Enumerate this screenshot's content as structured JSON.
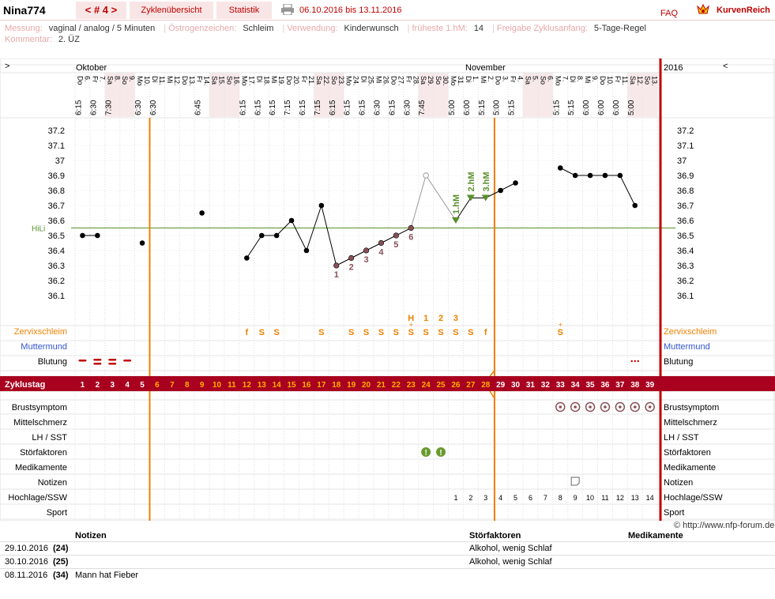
{
  "topbar": {
    "name": "Nina774",
    "cycle": "< # 4 >",
    "overview": "Zyklenübersicht",
    "stats": "Statistik",
    "daterange": "06.10.2016 bis 13.11.2016",
    "faq": "FAQ",
    "logo": "KurvenReich"
  },
  "meta": {
    "line1": [
      {
        "label": "Messung:",
        "value": "vaginal / analog / 5 Minuten"
      },
      {
        "label": "Östrogenzeichen:",
        "value": "Schleim"
      },
      {
        "label": "Verwendung:",
        "value": "Kinderwunsch"
      },
      {
        "label": "früheste 1.hM:",
        "value": "14"
      },
      {
        "label": "Freigabe Zyklusanfang:",
        "value": "5-Tage-Regel"
      }
    ],
    "comment_label": "Kommentar:",
    "comment": "2. ÜZ"
  },
  "chart": {
    "nav_left": ">",
    "nav_right": "<",
    "year": "2016",
    "month1": "Oktober",
    "month2": "November",
    "days": [
      {
        "d": "6.",
        "w": "Do",
        "t": "6:15"
      },
      {
        "d": "7.",
        "w": "Fr",
        "t": "6:30"
      },
      {
        "d": "8.",
        "w": "Sa",
        "t": "7:30"
      },
      {
        "d": "9.",
        "w": "So",
        "t": ""
      },
      {
        "d": "10.",
        "w": "Mo",
        "t": "6:30"
      },
      {
        "d": "11.",
        "w": "Di",
        "t": "6:30"
      },
      {
        "d": "12.",
        "w": "Mi",
        "t": ""
      },
      {
        "d": "13.",
        "w": "Do",
        "t": ""
      },
      {
        "d": "14.",
        "w": "Fr",
        "t": "6:45"
      },
      {
        "d": "15.",
        "w": "Sa",
        "t": ""
      },
      {
        "d": "16.",
        "w": "So",
        "t": ""
      },
      {
        "d": "17.",
        "w": "Mo",
        "t": "6:15"
      },
      {
        "d": "18.",
        "w": "Di",
        "t": "6:15"
      },
      {
        "d": "19.",
        "w": "Mi",
        "t": "6:15"
      },
      {
        "d": "20.",
        "w": "Do",
        "t": "7:15"
      },
      {
        "d": "21.",
        "w": "Fr",
        "t": "6:15"
      },
      {
        "d": "22.",
        "w": "Sa",
        "t": "7:15"
      },
      {
        "d": "23.",
        "w": "So",
        "t": "6:15"
      },
      {
        "d": "24.",
        "w": "Mo",
        "t": "6:15"
      },
      {
        "d": "25.",
        "w": "Di",
        "t": "6:15"
      },
      {
        "d": "26.",
        "w": "Mi",
        "t": "6:30"
      },
      {
        "d": "27.",
        "w": "Do",
        "t": "6:15"
      },
      {
        "d": "28.",
        "w": "Fr",
        "t": "6:30"
      },
      {
        "d": "29.",
        "w": "Sa",
        "t": "7:45"
      },
      {
        "d": "30.",
        "w": "So",
        "t": ""
      },
      {
        "d": "31.",
        "w": "Mo",
        "t": "5:00"
      },
      {
        "d": "1.",
        "w": "Di",
        "t": "6:00"
      },
      {
        "d": "2.",
        "w": "Mi",
        "t": "5:15"
      },
      {
        "d": "3.",
        "w": "Do",
        "t": "5:00"
      },
      {
        "d": "4.",
        "w": "Fr",
        "t": "5:15"
      },
      {
        "d": "5.",
        "w": "Sa",
        "t": ""
      },
      {
        "d": "6.",
        "w": "So",
        "t": ""
      },
      {
        "d": "7.",
        "w": "Mo",
        "t": "5:15"
      },
      {
        "d": "8.",
        "w": "Di",
        "t": "5:15"
      },
      {
        "d": "9.",
        "w": "Mi",
        "t": "6:00"
      },
      {
        "d": "10.",
        "w": "Do",
        "t": "6:00"
      },
      {
        "d": "11.",
        "w": "Fr",
        "t": "6:00"
      },
      {
        "d": "12.",
        "w": "Sa",
        "t": "5:00"
      },
      {
        "d": "13.",
        "w": "So",
        "t": ""
      }
    ],
    "weekend_idx": [
      2,
      3,
      9,
      10,
      16,
      17,
      23,
      24,
      30,
      31,
      37,
      38
    ],
    "yticks": [
      "37.2",
      "37.1",
      "37",
      "36.9",
      "36.8",
      "36.7",
      "36.6",
      "36.5",
      "36.4",
      "36.3",
      "36.2",
      "36.1"
    ],
    "hili_label": "HiLi",
    "rows": {
      "cervix": "Zervixschleim",
      "mm": "Muttermund",
      "blood": "Blutung",
      "cycle": "Zyklustag",
      "breast": "Brustsymptom",
      "pain": "Mittelschmerz",
      "lh": "LH / SST",
      "disturb": "Störfaktoren",
      "med": "Medikamente",
      "notes": "Notizen",
      "hoch": "Hochlage/SSW",
      "sport": "Sport"
    },
    "cervix_marks": {
      "12": "f",
      "13": "S",
      "14": "S",
      "17": "S",
      "19": "S",
      "20": "S",
      "21": "S",
      "22": "S",
      "23": "S",
      "24": "S",
      "25": "S",
      "26": "S",
      "27": "S",
      "28": "f",
      "33": "S"
    },
    "cervix_plus": [
      23,
      33
    ],
    "peak_labels": {
      "23": "H",
      "24": "1",
      "25": "2",
      "26": "3"
    },
    "hoch_labels": [
      "1",
      "2",
      "3",
      "4",
      "5",
      "6",
      "7",
      "8",
      "9",
      "10",
      "11",
      "12",
      "13",
      "14"
    ],
    "low_labels": [
      "1",
      "2",
      "3",
      "4",
      "5",
      "6"
    ],
    "hm_labels": [
      "1.hM",
      "2.hM",
      "3.hM"
    ]
  },
  "chart_data": {
    "type": "line",
    "x": [
      "6.10.",
      "7.10.",
      "8.10.",
      "9.10.",
      "10.10.",
      "11.10.",
      "12.10.",
      "13.10.",
      "14.10.",
      "15.10.",
      "16.10.",
      "17.10.",
      "18.10.",
      "19.10.",
      "20.10.",
      "21.10.",
      "22.10.",
      "23.10.",
      "24.10.",
      "25.10.",
      "26.10.",
      "27.10.",
      "28.10.",
      "29.10.",
      "30.10.",
      "31.10.",
      "1.11.",
      "2.11.",
      "3.11.",
      "4.11.",
      "5.11.",
      "6.11.",
      "7.11.",
      "8.11.",
      "9.11.",
      "10.11.",
      "11.11.",
      "12.11.",
      "13.11."
    ],
    "series": [
      {
        "values": [
          36.5,
          36.5,
          null,
          null,
          36.45,
          null,
          null,
          null,
          36.65,
          null,
          null,
          36.35,
          36.5,
          36.5,
          36.6,
          36.4,
          36.7,
          36.3,
          36.35,
          36.4,
          36.45,
          36.5,
          36.55,
          36.9,
          null,
          36.6,
          36.75,
          36.75,
          36.8,
          36.85,
          null,
          null,
          36.95,
          36.9,
          36.9,
          36.9,
          36.9,
          36.7,
          null
        ]
      }
    ],
    "excluded": [
      23
    ],
    "hili": 36.55,
    "ylim": [
      36.05,
      37.25
    ],
    "cycle_days": [
      1,
      2,
      3,
      4,
      5,
      6,
      7,
      8,
      9,
      10,
      11,
      12,
      13,
      14,
      15,
      16,
      17,
      18,
      19,
      20,
      21,
      22,
      23,
      24,
      25,
      26,
      27,
      28,
      29,
      30,
      31,
      32,
      33,
      34,
      35,
      36,
      37,
      38,
      39
    ],
    "bleeding_days": [
      1,
      2,
      3,
      4,
      38
    ],
    "breast_days": [
      33,
      34,
      35,
      36,
      37,
      38,
      39
    ],
    "disturb_days": [
      24,
      25
    ],
    "note_days": [
      34
    ],
    "ylabel": "",
    "xlabel": ""
  },
  "notes": {
    "h_notes": "Notizen",
    "h_dist": "Störfaktoren",
    "h_med": "Medikamente",
    "copyright": "© http://www.nfp-forum.de",
    "rows": [
      {
        "date": "29.10.2016",
        "day": "(24)",
        "note": "",
        "dist": "Alkohol, wenig Schlaf"
      },
      {
        "date": "30.10.2016",
        "day": "(25)",
        "note": "",
        "dist": "Alkohol, wenig Schlaf"
      },
      {
        "date": "08.11.2016",
        "day": "(34)",
        "note": "Mann hat Fieber",
        "dist": ""
      }
    ]
  },
  "colors": {
    "red": "#b00020",
    "orange": "#f08000",
    "green": "#5a8f2a",
    "blue": "#3355cc",
    "dark": "#8a5058"
  }
}
